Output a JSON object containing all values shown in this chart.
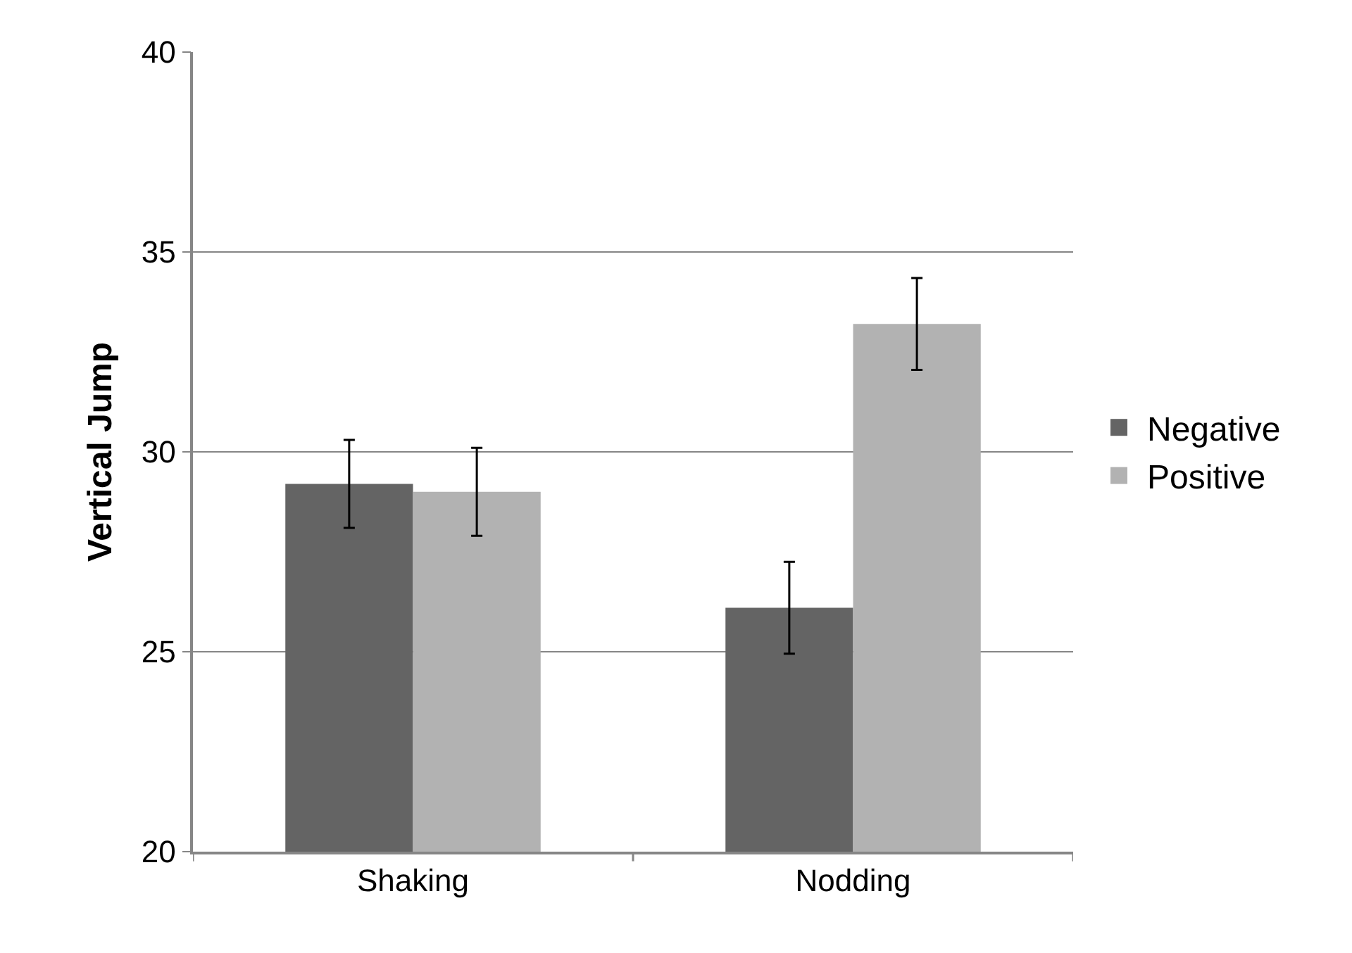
{
  "chart_data": {
    "type": "bar",
    "ylabel": "Vertical Jump",
    "categories": [
      "Shaking",
      "Nodding"
    ],
    "series": [
      {
        "name": "Negative",
        "color": "#646464",
        "values": [
          29.2,
          26.1
        ],
        "errors": [
          1.1,
          1.15
        ]
      },
      {
        "name": "Positive",
        "color": "#b2b2b2",
        "values": [
          29.0,
          33.2
        ],
        "errors": [
          1.1,
          1.15
        ]
      }
    ],
    "ylim": [
      20,
      40
    ],
    "yticks": [
      20,
      25,
      30,
      35,
      40
    ],
    "grid": "y",
    "legend": "right"
  }
}
